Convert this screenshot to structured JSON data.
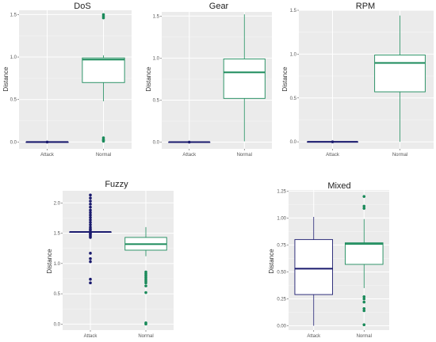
{
  "chart_data": [
    {
      "type": "boxplot",
      "title": "DoS",
      "ylabel": "Distance",
      "categories": [
        "Attack",
        "Normal"
      ],
      "ylim": [
        -0.08,
        1.55
      ],
      "yticks": [
        0.0,
        0.5,
        1.0,
        1.5
      ],
      "ytick_labels": [
        "0.0",
        "0.5",
        "1.0",
        "1.5"
      ],
      "grid": true,
      "boxes": [
        {
          "category": "Attack",
          "color": "#1a1a6e",
          "min": 0.0,
          "q1": 0.0,
          "median": 0.0,
          "q3": 0.0,
          "max": 0.0,
          "outliers": [
            0.0
          ]
        },
        {
          "category": "Normal",
          "color": "#1a8a5a",
          "min": 0.48,
          "q1": 0.7,
          "median": 0.97,
          "q3": 0.99,
          "max": 1.02,
          "outliers": [
            1.5,
            1.48,
            1.46,
            0.05,
            0.03,
            0.02,
            0.01
          ]
        }
      ]
    },
    {
      "type": "boxplot",
      "title": "Gear",
      "ylabel": "Distance",
      "categories": [
        "Attack",
        "Normal"
      ],
      "ylim": [
        -0.08,
        1.55
      ],
      "yticks": [
        0.0,
        0.5,
        1.0,
        1.5
      ],
      "ytick_labels": [
        "0.0",
        "0.5",
        "1.0",
        "1.5"
      ],
      "grid": true,
      "boxes": [
        {
          "category": "Attack",
          "color": "#1a1a6e",
          "min": 0.0,
          "q1": 0.0,
          "median": 0.0,
          "q3": 0.0,
          "max": 0.0,
          "outliers": [
            0.0
          ]
        },
        {
          "category": "Normal",
          "color": "#1a8a5a",
          "min": 0.01,
          "q1": 0.52,
          "median": 0.83,
          "q3": 0.99,
          "max": 1.52,
          "outliers": []
        }
      ]
    },
    {
      "type": "boxplot",
      "title": "RPM",
      "ylabel": "Distance",
      "categories": [
        "Attack",
        "Normal"
      ],
      "ylim": [
        -0.08,
        1.5
      ],
      "yticks": [
        0.0,
        0.5,
        1.0,
        1.5
      ],
      "ytick_labels": [
        "0.0",
        "0.5",
        "1.0",
        "1.5"
      ],
      "grid": true,
      "boxes": [
        {
          "category": "Attack",
          "color": "#1a1a6e",
          "min": 0.0,
          "q1": 0.0,
          "median": 0.0,
          "q3": 0.0,
          "max": 0.0,
          "outliers": [
            0.0
          ]
        },
        {
          "category": "Normal",
          "color": "#1a8a5a",
          "min": 0.0,
          "q1": 0.57,
          "median": 0.9,
          "q3": 0.99,
          "max": 1.44,
          "outliers": []
        }
      ]
    },
    {
      "type": "boxplot",
      "title": "Fuzzy",
      "ylabel": "Distance",
      "categories": [
        "Attack",
        "Normal"
      ],
      "ylim": [
        -0.1,
        2.2
      ],
      "yticks": [
        0.0,
        0.5,
        1.0,
        1.5,
        2.0
      ],
      "ytick_labels": [
        "0.0",
        "0.5",
        "1.0",
        "1.5",
        "2.0"
      ],
      "grid": true,
      "boxes": [
        {
          "category": "Attack",
          "color": "#1a1a6e",
          "min": 1.52,
          "q1": 1.52,
          "median": 1.52,
          "q3": 1.52,
          "max": 1.52,
          "outliers": [
            2.13,
            2.08,
            2.03,
            1.98,
            1.93,
            1.88,
            1.84,
            1.8,
            1.76,
            1.72,
            1.68,
            1.64,
            1.6,
            1.57,
            1.55,
            1.5,
            1.49,
            1.47,
            1.45,
            1.43,
            1.17,
            1.08,
            1.03,
            0.74,
            0.68
          ]
        },
        {
          "category": "Normal",
          "color": "#1a8a5a",
          "min": 1.12,
          "q1": 1.22,
          "median": 1.32,
          "q3": 1.43,
          "max": 1.6,
          "outliers": [
            0.86,
            0.83,
            0.8,
            0.77,
            0.74,
            0.71,
            0.68,
            0.63,
            0.52,
            0.02,
            0.0
          ]
        }
      ]
    },
    {
      "type": "boxplot",
      "title": "Mixed",
      "ylabel": "Distance",
      "categories": [
        "Attack",
        "Normal"
      ],
      "ylim": [
        -0.04,
        1.26
      ],
      "yticks": [
        0.0,
        0.25,
        0.5,
        0.75,
        1.0,
        1.25
      ],
      "ytick_labels": [
        "0.00",
        "0.25",
        "0.50",
        "0.75",
        "1.00",
        "1.25"
      ],
      "grid": true,
      "boxes": [
        {
          "category": "Attack",
          "color": "#1a1a6e",
          "min": 0.0,
          "q1": 0.29,
          "median": 0.53,
          "q3": 0.8,
          "max": 1.01,
          "outliers": []
        },
        {
          "category": "Normal",
          "color": "#1a8a5a",
          "min": 0.35,
          "q1": 0.57,
          "median": 0.76,
          "q3": 0.77,
          "max": 0.99,
          "outliers": [
            1.2,
            1.11,
            1.09,
            0.27,
            0.25,
            0.22,
            0.16,
            0.14,
            0.01
          ]
        }
      ]
    }
  ]
}
